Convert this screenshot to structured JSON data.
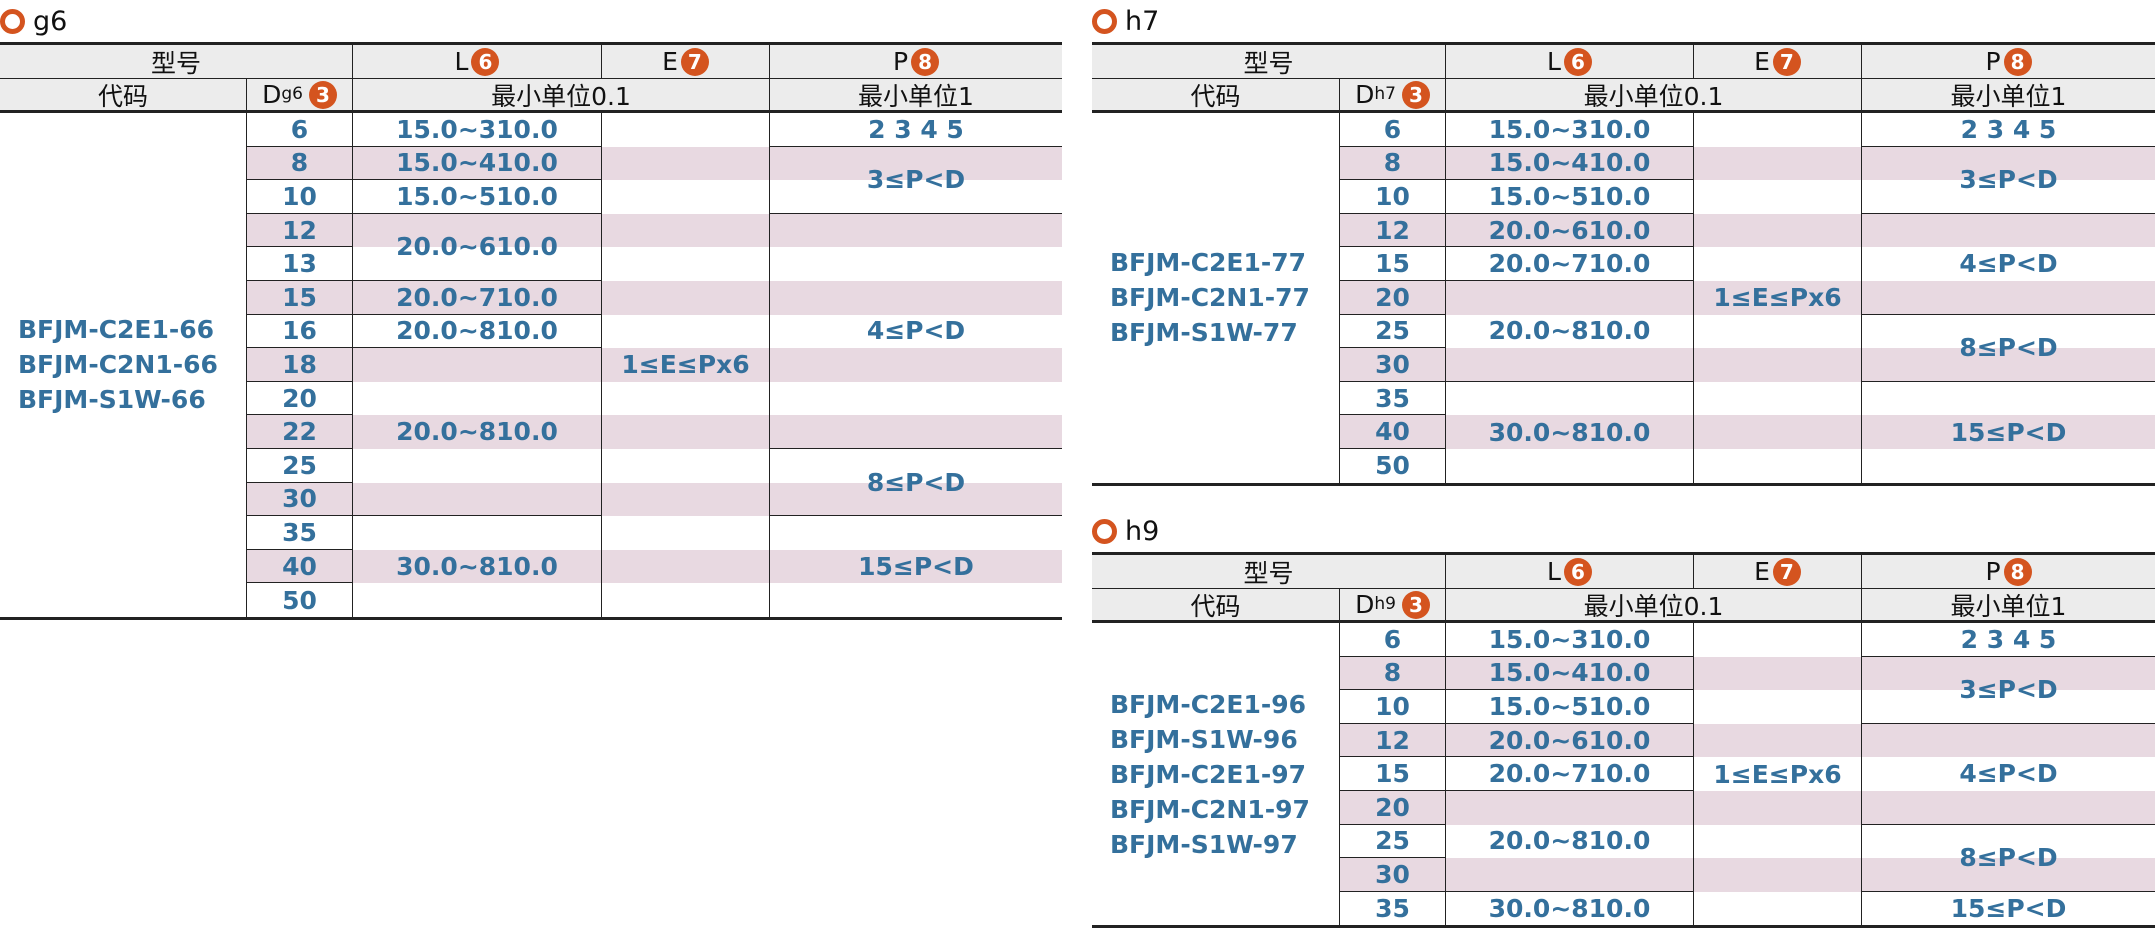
{
  "colors": {
    "accent": "#d4541f",
    "text": "#34709c",
    "stripe": "#e8d9e1",
    "header_bg": "#ececec"
  },
  "sections": [
    {
      "title": "g6",
      "header": {
        "model": "型号",
        "code": "代码",
        "d": "D",
        "d_sub": "g6",
        "d_badge": "3",
        "l": "L",
        "l_badge": "6",
        "e": "E",
        "e_badge": "7",
        "p": "P",
        "p_badge": "8",
        "unit_le": "最小单位0.1",
        "unit_p": "最小单位1"
      },
      "codes": [
        "BFJM-C2E1-66",
        "BFJM-C2N1-66",
        "BFJM-S1W-66"
      ],
      "rows": [
        {
          "d": "6",
          "pink": false
        },
        {
          "d": "8",
          "pink": true
        },
        {
          "d": "10",
          "pink": false
        },
        {
          "d": "12",
          "pink": true
        },
        {
          "d": "13",
          "pink": false
        },
        {
          "d": "15",
          "pink": true
        },
        {
          "d": "16",
          "pink": false
        },
        {
          "d": "18",
          "pink": true
        },
        {
          "d": "20",
          "pink": false
        },
        {
          "d": "22",
          "pink": true
        },
        {
          "d": "25",
          "pink": false
        },
        {
          "d": "30",
          "pink": true
        },
        {
          "d": "35",
          "pink": false
        },
        {
          "d": "40",
          "pink": true
        },
        {
          "d": "50",
          "pink": false
        }
      ],
      "L": [
        {
          "text": "15.0~310.0",
          "span": 1
        },
        {
          "text": "15.0~410.0",
          "span": 1
        },
        {
          "text": "15.0~510.0",
          "span": 1
        },
        {
          "text": "20.0~610.0",
          "span": 2
        },
        {
          "text": "20.0~710.0",
          "span": 1
        },
        {
          "text": "20.0~810.0",
          "span": 1
        },
        {
          "text": "20.0~810.0",
          "span": 5
        },
        {
          "text": "30.0~810.0",
          "span": 3
        }
      ],
      "E": [
        {
          "text": "1≤E≤Px6",
          "span": 15
        }
      ],
      "P": [
        {
          "text": "2 3 4 5",
          "span": 1
        },
        {
          "text": "3≤P<D",
          "span": 2
        },
        {
          "text": "4≤P<D",
          "span": 7
        },
        {
          "text": "8≤P<D",
          "span": 2
        },
        {
          "text": "15≤P<D",
          "span": 3
        }
      ]
    },
    {
      "title": "h7",
      "header": {
        "model": "型号",
        "code": "代码",
        "d": "D",
        "d_sub": "h7",
        "d_badge": "3",
        "l": "L",
        "l_badge": "6",
        "e": "E",
        "e_badge": "7",
        "p": "P",
        "p_badge": "8",
        "unit_le": "最小单位0.1",
        "unit_p": "最小单位1"
      },
      "codes": [
        "BFJM-C2E1-77",
        "BFJM-C2N1-77",
        "BFJM-S1W-77"
      ],
      "rows": [
        {
          "d": "6",
          "pink": false
        },
        {
          "d": "8",
          "pink": true
        },
        {
          "d": "10",
          "pink": false
        },
        {
          "d": "12",
          "pink": true
        },
        {
          "d": "15",
          "pink": false
        },
        {
          "d": "20",
          "pink": true
        },
        {
          "d": "25",
          "pink": false
        },
        {
          "d": "30",
          "pink": true
        },
        {
          "d": "35",
          "pink": false
        },
        {
          "d": "40",
          "pink": true
        },
        {
          "d": "50",
          "pink": false
        }
      ],
      "L": [
        {
          "text": "15.0~310.0",
          "span": 1
        },
        {
          "text": "15.0~410.0",
          "span": 1
        },
        {
          "text": "15.0~510.0",
          "span": 1
        },
        {
          "text": "20.0~610.0",
          "span": 1
        },
        {
          "text": "20.0~710.0",
          "span": 1
        },
        {
          "text": "20.0~810.0",
          "span": 3
        },
        {
          "text": "30.0~810.0",
          "span": 3
        }
      ],
      "E": [
        {
          "text": "1≤E≤Px6",
          "span": 11
        }
      ],
      "P": [
        {
          "text": "2 3 4 5",
          "span": 1
        },
        {
          "text": "3≤P<D",
          "span": 2
        },
        {
          "text": "4≤P<D",
          "span": 3
        },
        {
          "text": "8≤P<D",
          "span": 2
        },
        {
          "text": "15≤P<D",
          "span": 3
        }
      ]
    },
    {
      "title": "h9",
      "header": {
        "model": "型号",
        "code": "代码",
        "d": "D",
        "d_sub": "h9",
        "d_badge": "3",
        "l": "L",
        "l_badge": "6",
        "e": "E",
        "e_badge": "7",
        "p": "P",
        "p_badge": "8",
        "unit_le": "最小单位0.1",
        "unit_p": "最小单位1"
      },
      "codes": [
        "BFJM-C2E1-96",
        "BFJM-S1W-96",
        "BFJM-C2E1-97",
        "BFJM-C2N1-97",
        "BFJM-S1W-97"
      ],
      "rows": [
        {
          "d": "6",
          "pink": false
        },
        {
          "d": "8",
          "pink": true
        },
        {
          "d": "10",
          "pink": false
        },
        {
          "d": "12",
          "pink": true
        },
        {
          "d": "15",
          "pink": false
        },
        {
          "d": "20",
          "pink": true
        },
        {
          "d": "25",
          "pink": false
        },
        {
          "d": "30",
          "pink": true
        },
        {
          "d": "35",
          "pink": false
        }
      ],
      "L": [
        {
          "text": "15.0~310.0",
          "span": 1
        },
        {
          "text": "15.0~410.0",
          "span": 1
        },
        {
          "text": "15.0~510.0",
          "span": 1
        },
        {
          "text": "20.0~610.0",
          "span": 1
        },
        {
          "text": "20.0~710.0",
          "span": 1
        },
        {
          "text": "20.0~810.0",
          "span": 3
        },
        {
          "text": "30.0~810.0",
          "span": 1
        }
      ],
      "E": [
        {
          "text": "1≤E≤Px6",
          "span": 9
        }
      ],
      "P": [
        {
          "text": "2 3 4 5",
          "span": 1
        },
        {
          "text": "3≤P<D",
          "span": 2
        },
        {
          "text": "4≤P<D",
          "span": 3
        },
        {
          "text": "8≤P<D",
          "span": 2
        },
        {
          "text": "15≤P<D",
          "span": 1
        }
      ]
    }
  ]
}
